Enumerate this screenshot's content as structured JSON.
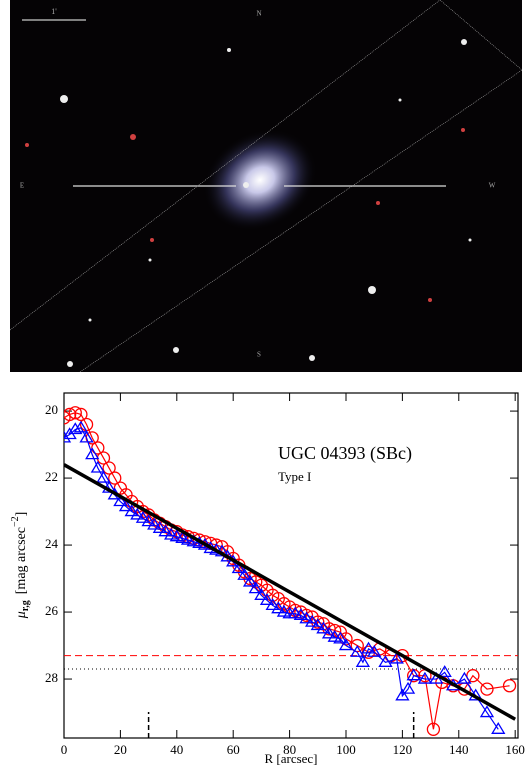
{
  "image": {
    "scale_label": "1'",
    "compass": {
      "north": "N",
      "east": "E",
      "west": "W",
      "south": "S"
    }
  },
  "chart_data": {
    "type": "line",
    "annotation": "UGC 04393 (SBc)",
    "subtitle": "Type I",
    "x_label": "R [arcsec]",
    "y_label": {
      "symbol": "μ",
      "subscript": "r,g",
      "unit": "[mag arcsec",
      "exponent": "−2",
      "close": "]"
    },
    "xlim": [
      0,
      161
    ],
    "xticks": [
      0,
      20,
      40,
      60,
      80,
      100,
      120,
      140,
      160
    ],
    "ylim": [
      29.76,
      19.46
    ],
    "yticks": [
      20,
      22,
      24,
      26,
      28
    ],
    "series": [
      {
        "name": "r",
        "color": "#ff0000",
        "marker": "circle",
        "x": [
          0,
          2,
          4,
          6,
          8,
          10,
          12,
          14,
          16,
          18,
          20,
          22,
          24,
          26,
          28,
          30,
          32,
          34,
          36,
          38,
          40,
          42,
          44,
          46,
          48,
          50,
          52,
          54,
          56,
          58,
          60,
          62,
          64,
          66,
          68,
          70,
          72,
          74,
          76,
          78,
          80,
          82,
          84,
          86,
          88,
          90,
          92,
          94,
          96,
          98,
          100,
          104,
          108,
          112,
          116,
          120,
          124,
          128,
          131,
          134,
          138,
          142,
          145,
          150,
          158
        ],
        "values": [
          20.2,
          20.1,
          20.05,
          20.1,
          20.4,
          20.8,
          21.1,
          21.4,
          21.7,
          22.0,
          22.3,
          22.5,
          22.7,
          22.85,
          23.0,
          23.1,
          23.25,
          23.35,
          23.45,
          23.55,
          23.6,
          23.7,
          23.75,
          23.8,
          23.85,
          23.9,
          23.95,
          24.0,
          24.05,
          24.2,
          24.4,
          24.6,
          24.8,
          25.0,
          25.1,
          25.2,
          25.35,
          25.5,
          25.6,
          25.75,
          25.85,
          25.95,
          26.0,
          26.1,
          26.15,
          26.3,
          26.35,
          26.5,
          26.55,
          26.6,
          26.8,
          27.0,
          27.2,
          27.1,
          27.3,
          27.3,
          27.9,
          27.9,
          29.5,
          28.1,
          28.2,
          28.3,
          27.9,
          28.3,
          28.2
        ]
      },
      {
        "name": "g",
        "color": "#0000ff",
        "marker": "triangle",
        "x": [
          0,
          2,
          4,
          6,
          8,
          10,
          12,
          14,
          16,
          18,
          20,
          22,
          24,
          26,
          28,
          30,
          32,
          34,
          36,
          38,
          40,
          42,
          44,
          46,
          48,
          50,
          52,
          54,
          56,
          58,
          60,
          62,
          64,
          66,
          68,
          70,
          72,
          74,
          76,
          78,
          80,
          82,
          84,
          86,
          88,
          90,
          92,
          94,
          96,
          98,
          100,
          104,
          106,
          108,
          110,
          114,
          118,
          120,
          122,
          124,
          128,
          132,
          135,
          138,
          142,
          146,
          150,
          154
        ],
        "values": [
          20.8,
          20.7,
          20.55,
          20.5,
          20.8,
          21.3,
          21.7,
          22.0,
          22.3,
          22.5,
          22.7,
          22.85,
          23.0,
          23.1,
          23.2,
          23.3,
          23.4,
          23.5,
          23.6,
          23.7,
          23.75,
          23.8,
          23.85,
          23.9,
          23.95,
          24.0,
          24.1,
          24.15,
          24.2,
          24.35,
          24.5,
          24.7,
          24.9,
          25.1,
          25.3,
          25.5,
          25.65,
          25.8,
          25.9,
          26.0,
          26.05,
          26.05,
          26.1,
          26.2,
          26.3,
          26.4,
          26.5,
          26.65,
          26.75,
          26.8,
          27.0,
          27.2,
          27.5,
          27.1,
          27.2,
          27.5,
          27.4,
          28.5,
          28.3,
          27.9,
          28.0,
          28.0,
          27.8,
          28.2,
          28.0,
          28.5,
          29.0,
          29.5
        ]
      },
      {
        "name": "fit",
        "color": "#000000",
        "marker": "none",
        "x": [
          0,
          160
        ],
        "values": [
          21.6,
          29.2
        ]
      }
    ],
    "hlines": [
      {
        "value": 27.3,
        "color": "#ff0000",
        "style": "dashed"
      },
      {
        "value": 27.7,
        "color": "#000000",
        "style": "dotted"
      }
    ],
    "vmarkers": [
      30,
      124
    ]
  }
}
